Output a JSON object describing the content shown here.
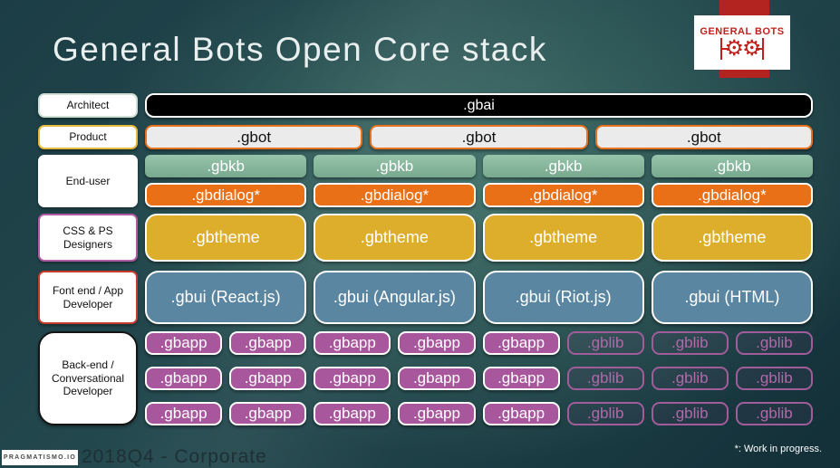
{
  "title": "General Bots Open Core stack",
  "logo": {
    "name": "GENERAL BOTS"
  },
  "stack": {
    "architect": {
      "label": "Architect",
      "box": ".gbai"
    },
    "product": {
      "label": "Product",
      "box": ".gbot",
      "count": 3
    },
    "end_user": {
      "label": "End-user",
      "kb_box": ".gbkb",
      "kb_count": 4,
      "dialog_box": ".gbdialog*",
      "dialog_count": 4
    },
    "designers": {
      "label": "CSS & PS Designers",
      "box": ".gbtheme",
      "count": 4
    },
    "frontend": {
      "label": "Font end / App Developer",
      "boxes": [
        ".gbui (React.js)",
        ".gbui (Angular.js)",
        ".gbui (Riot.js)",
        ".gbui (HTML)"
      ]
    },
    "backend": {
      "label": "Back-end / Conversational Developer",
      "app_box": ".gbapp",
      "app_per_row": 5,
      "lib_box": ".gblib",
      "lib_per_row": 3,
      "rows": 3
    }
  },
  "footer": {
    "brand": "PRAGMATISMO.IO",
    "slide_label": "2018Q4 - Corporate",
    "note": "*: Work in progress."
  },
  "colors": {
    "background_center": "#3e6e67",
    "background_edge": "#132f38",
    "title_text": "#e9efee",
    "gbai_bg": "#000000",
    "gbot_bg": "#ebebeb",
    "gbot_border": "#e8731e",
    "gbkb_bg": "#87b89d",
    "gbdialog_bg": "#ea7017",
    "gbtheme_bg": "#dcae2b",
    "gbui_bg": "#5b86a1",
    "gbapp_bg": "#a9579d",
    "gblib_border": "#a05d9a",
    "logo_red": "#c0211c",
    "product_label_border": "#e5bb3e",
    "designers_label_border": "#b25aa4",
    "frontend_label_border": "#c43c2e"
  }
}
